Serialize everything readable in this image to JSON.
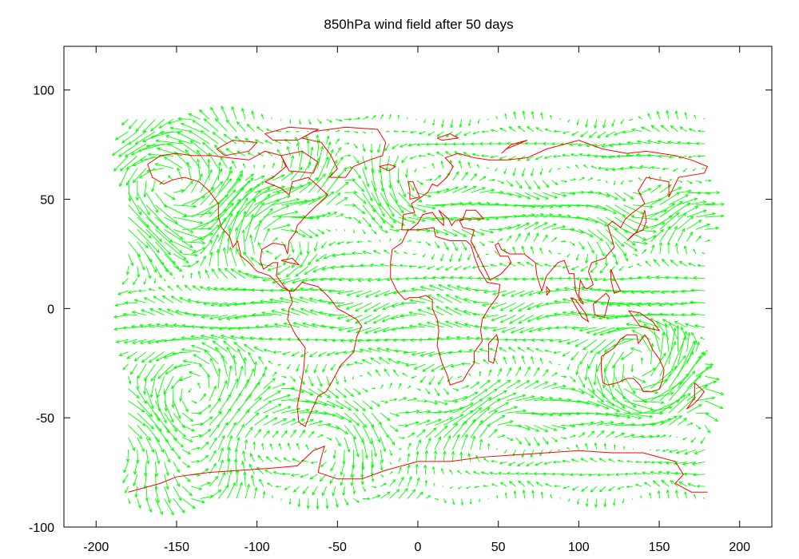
{
  "chart_data": {
    "type": "quiver",
    "title": "850hPa wind field after 50 days",
    "xlabel": "",
    "ylabel": "",
    "xlim": [
      -220,
      220
    ],
    "ylim": [
      -100,
      120
    ],
    "x_ticks": [
      -200,
      -150,
      -100,
      -50,
      0,
      50,
      100,
      150,
      200
    ],
    "y_ticks": [
      -100,
      -50,
      0,
      50,
      100
    ],
    "grid": false,
    "legend": "none",
    "series": [
      {
        "kind": "wind-vectors",
        "color": "#00ff00",
        "x_range": [
          -180,
          180
        ],
        "y_range": [
          -87,
          87
        ],
        "spacing": 5.6
      },
      {
        "kind": "coastline",
        "color": "#ff0000"
      }
    ],
    "vortices": [
      {
        "x": -150,
        "y": 50,
        "strength": 14,
        "r": 22
      },
      {
        "x": -140,
        "y": -55,
        "strength": 13,
        "r": 22
      },
      {
        "x": -45,
        "y": 55,
        "strength": -10,
        "r": 18
      },
      {
        "x": 140,
        "y": -25,
        "strength": 10,
        "r": 18
      },
      {
        "x": 170,
        "y": -40,
        "strength": -9,
        "r": 16
      },
      {
        "x": 135,
        "y": 48,
        "strength": 8,
        "r": 15
      },
      {
        "x": 20,
        "y": -45,
        "strength": 7,
        "r": 16
      },
      {
        "x": -90,
        "y": 30,
        "strength": -6,
        "r": 18
      },
      {
        "x": -20,
        "y": -60,
        "strength": 9,
        "r": 20
      }
    ]
  },
  "coastlines": {
    "north_america": [
      [
        -168,
        66
      ],
      [
        -160,
        70
      ],
      [
        -150,
        71
      ],
      [
        -140,
        70
      ],
      [
        -128,
        70
      ],
      [
        -118,
        69
      ],
      [
        -105,
        68
      ],
      [
        -95,
        72
      ],
      [
        -85,
        70
      ],
      [
        -82,
        65
      ],
      [
        -90,
        60
      ],
      [
        -95,
        58
      ],
      [
        -85,
        55
      ],
      [
        -80,
        52
      ],
      [
        -78,
        58
      ],
      [
        -68,
        60
      ],
      [
        -62,
        56
      ],
      [
        -56,
        52
      ],
      [
        -66,
        45
      ],
      [
        -70,
        42
      ],
      [
        -75,
        38
      ],
      [
        -76,
        35
      ],
      [
        -80,
        31
      ],
      [
        -81,
        25
      ],
      [
        -83,
        29
      ],
      [
        -90,
        30
      ],
      [
        -97,
        27
      ],
      [
        -98,
        22
      ],
      [
        -96,
        18
      ],
      [
        -90,
        21
      ],
      [
        -87,
        21
      ],
      [
        -88,
        15
      ],
      [
        -83,
        10
      ],
      [
        -80,
        8
      ],
      [
        -85,
        10
      ],
      [
        -92,
        15
      ],
      [
        -100,
        17
      ],
      [
        -105,
        21
      ],
      [
        -110,
        24
      ],
      [
        -112,
        31
      ],
      [
        -115,
        28
      ],
      [
        -117,
        33
      ],
      [
        -122,
        37
      ],
      [
        -124,
        42
      ],
      [
        -124,
        48
      ],
      [
        -130,
        54
      ],
      [
        -136,
        58
      ],
      [
        -145,
        60
      ],
      [
        -152,
        59
      ],
      [
        -158,
        57
      ],
      [
        -165,
        60
      ],
      [
        -168,
        66
      ]
    ],
    "south_america": [
      [
        -80,
        8
      ],
      [
        -77,
        8
      ],
      [
        -72,
        12
      ],
      [
        -62,
        10
      ],
      [
        -55,
        5
      ],
      [
        -50,
        0
      ],
      [
        -45,
        -2
      ],
      [
        -38,
        -5
      ],
      [
        -35,
        -8
      ],
      [
        -38,
        -13
      ],
      [
        -40,
        -20
      ],
      [
        -44,
        -23
      ],
      [
        -48,
        -26
      ],
      [
        -53,
        -33
      ],
      [
        -57,
        -38
      ],
      [
        -62,
        -40
      ],
      [
        -65,
        -45
      ],
      [
        -68,
        -50
      ],
      [
        -70,
        -54
      ],
      [
        -74,
        -52
      ],
      [
        -75,
        -45
      ],
      [
        -73,
        -37
      ],
      [
        -71,
        -28
      ],
      [
        -70,
        -18
      ],
      [
        -76,
        -12
      ],
      [
        -81,
        -5
      ],
      [
        -80,
        0
      ],
      [
        -78,
        3
      ],
      [
        -80,
        8
      ]
    ],
    "eurasia": [
      [
        -10,
        36
      ],
      [
        -9,
        43
      ],
      [
        -2,
        44
      ],
      [
        -4,
        48
      ],
      [
        2,
        51
      ],
      [
        6,
        53
      ],
      [
        9,
        57
      ],
      [
        12,
        56
      ],
      [
        18,
        60
      ],
      [
        22,
        65
      ],
      [
        17,
        69
      ],
      [
        25,
        71
      ],
      [
        35,
        69
      ],
      [
        44,
        68
      ],
      [
        55,
        68
      ],
      [
        68,
        69
      ],
      [
        80,
        73
      ],
      [
        100,
        77
      ],
      [
        115,
        73
      ],
      [
        130,
        71
      ],
      [
        142,
        72
      ],
      [
        160,
        70
      ],
      [
        170,
        68
      ],
      [
        180,
        65
      ],
      [
        178,
        62
      ],
      [
        162,
        60
      ],
      [
        156,
        51
      ],
      [
        156,
        58
      ],
      [
        142,
        60
      ],
      [
        137,
        54
      ],
      [
        141,
        48
      ],
      [
        132,
        43
      ],
      [
        129,
        41
      ],
      [
        126,
        37
      ],
      [
        121,
        40
      ],
      [
        118,
        38
      ],
      [
        121,
        31
      ],
      [
        122,
        28
      ],
      [
        116,
        23
      ],
      [
        108,
        21
      ],
      [
        106,
        17
      ],
      [
        109,
        11
      ],
      [
        105,
        9
      ],
      [
        103,
        10
      ],
      [
        101,
        13
      ],
      [
        100,
        6
      ],
      [
        103,
        2
      ],
      [
        101,
        3
      ],
      [
        98,
        8
      ],
      [
        97,
        16
      ],
      [
        94,
        16
      ],
      [
        91,
        22
      ],
      [
        87,
        21
      ],
      [
        80,
        15
      ],
      [
        77,
        8
      ],
      [
        74,
        15
      ],
      [
        73,
        21
      ],
      [
        66,
        25
      ],
      [
        57,
        25
      ],
      [
        52,
        27
      ],
      [
        50,
        30
      ],
      [
        48,
        29
      ],
      [
        51,
        24
      ],
      [
        56,
        24
      ],
      [
        58,
        21
      ],
      [
        52,
        16
      ],
      [
        45,
        13
      ],
      [
        43,
        16
      ],
      [
        39,
        22
      ],
      [
        35,
        28
      ],
      [
        33,
        31
      ],
      [
        35,
        36
      ],
      [
        28,
        37
      ],
      [
        26,
        40
      ],
      [
        29,
        41
      ],
      [
        41,
        41
      ],
      [
        36,
        45
      ],
      [
        30,
        45
      ],
      [
        28,
        41
      ],
      [
        23,
        40
      ],
      [
        21,
        38
      ],
      [
        19,
        41
      ],
      [
        13,
        45
      ],
      [
        16,
        41
      ],
      [
        16,
        38
      ],
      [
        12,
        41
      ],
      [
        9,
        44
      ],
      [
        3,
        43
      ],
      [
        0,
        39
      ],
      [
        -5,
        36
      ],
      [
        -10,
        36
      ]
    ],
    "africa": [
      [
        -17,
        21
      ],
      [
        -16,
        27
      ],
      [
        -10,
        30
      ],
      [
        -6,
        36
      ],
      [
        0,
        36
      ],
      [
        10,
        37
      ],
      [
        11,
        33
      ],
      [
        20,
        31
      ],
      [
        30,
        31
      ],
      [
        33,
        29
      ],
      [
        35,
        24
      ],
      [
        38,
        18
      ],
      [
        43,
        12
      ],
      [
        51,
        11
      ],
      [
        50,
        6
      ],
      [
        44,
        0
      ],
      [
        40,
        -5
      ],
      [
        39,
        -10
      ],
      [
        40,
        -15
      ],
      [
        35,
        -20
      ],
      [
        35,
        -25
      ],
      [
        32,
        -28
      ],
      [
        28,
        -33
      ],
      [
        20,
        -35
      ],
      [
        18,
        -30
      ],
      [
        15,
        -25
      ],
      [
        12,
        -17
      ],
      [
        13,
        -10
      ],
      [
        12,
        -5
      ],
      [
        9,
        0
      ],
      [
        9,
        4
      ],
      [
        5,
        6
      ],
      [
        0,
        5
      ],
      [
        -5,
        5
      ],
      [
        -8,
        4
      ],
      [
        -13,
        8
      ],
      [
        -17,
        14
      ],
      [
        -17,
        21
      ]
    ],
    "greenland": [
      [
        -55,
        60
      ],
      [
        -50,
        64
      ],
      [
        -54,
        70
      ],
      [
        -60,
        76
      ],
      [
        -72,
        78
      ],
      [
        -65,
        81
      ],
      [
        -45,
        83
      ],
      [
        -25,
        82
      ],
      [
        -20,
        76
      ],
      [
        -22,
        70
      ],
      [
        -30,
        68
      ],
      [
        -40,
        65
      ],
      [
        -45,
        60
      ],
      [
        -55,
        60
      ]
    ],
    "australia": [
      [
        114,
        -22
      ],
      [
        122,
        -18
      ],
      [
        126,
        -14
      ],
      [
        130,
        -12
      ],
      [
        136,
        -12
      ],
      [
        137,
        -16
      ],
      [
        141,
        -12
      ],
      [
        143,
        -14
      ],
      [
        146,
        -19
      ],
      [
        150,
        -23
      ],
      [
        153,
        -28
      ],
      [
        152,
        -33
      ],
      [
        150,
        -37
      ],
      [
        145,
        -38
      ],
      [
        140,
        -38
      ],
      [
        138,
        -35
      ],
      [
        134,
        -32
      ],
      [
        130,
        -32
      ],
      [
        124,
        -34
      ],
      [
        118,
        -35
      ],
      [
        115,
        -34
      ],
      [
        114,
        -28
      ],
      [
        114,
        -22
      ]
    ],
    "antarctica": [
      [
        -180,
        -84
      ],
      [
        -170,
        -82
      ],
      [
        -160,
        -80
      ],
      [
        -150,
        -77
      ],
      [
        -130,
        -75
      ],
      [
        -110,
        -74
      ],
      [
        -90,
        -73
      ],
      [
        -75,
        -72
      ],
      [
        -65,
        -65
      ],
      [
        -58,
        -63
      ],
      [
        -60,
        -68
      ],
      [
        -62,
        -75
      ],
      [
        -50,
        -78
      ],
      [
        -35,
        -78
      ],
      [
        -20,
        -74
      ],
      [
        0,
        -70
      ],
      [
        20,
        -70
      ],
      [
        40,
        -68
      ],
      [
        60,
        -67
      ],
      [
        80,
        -66
      ],
      [
        100,
        -65
      ],
      [
        120,
        -66
      ],
      [
        140,
        -66
      ],
      [
        160,
        -70
      ],
      [
        165,
        -76
      ],
      [
        160,
        -80
      ],
      [
        170,
        -84
      ],
      [
        180,
        -84
      ]
    ],
    "madagascar": [
      [
        44,
        -16
      ],
      [
        49,
        -12
      ],
      [
        50,
        -15
      ],
      [
        47,
        -25
      ],
      [
        44,
        -24
      ],
      [
        44,
        -16
      ]
    ],
    "borneo": [
      [
        109,
        2
      ],
      [
        117,
        7
      ],
      [
        119,
        5
      ],
      [
        117,
        -1
      ],
      [
        116,
        -4
      ],
      [
        110,
        -3
      ],
      [
        109,
        2
      ]
    ],
    "sumatra": [
      [
        95,
        5
      ],
      [
        98,
        4
      ],
      [
        104,
        -2
      ],
      [
        106,
        -6
      ],
      [
        102,
        -4
      ],
      [
        95,
        5
      ]
    ],
    "new_guinea": [
      [
        131,
        -1
      ],
      [
        138,
        -2
      ],
      [
        146,
        -6
      ],
      [
        150,
        -10
      ],
      [
        143,
        -9
      ],
      [
        138,
        -8
      ],
      [
        131,
        -1
      ]
    ],
    "japan": [
      [
        130,
        31
      ],
      [
        134,
        34
      ],
      [
        140,
        36
      ],
      [
        142,
        40
      ],
      [
        141,
        45
      ],
      [
        139,
        40
      ],
      [
        136,
        35
      ],
      [
        130,
        31
      ]
    ],
    "new_zealand": [
      [
        172,
        -34
      ],
      [
        178,
        -38
      ],
      [
        175,
        -41
      ],
      [
        171,
        -44
      ],
      [
        167,
        -46
      ],
      [
        172,
        -41
      ],
      [
        172,
        -34
      ]
    ],
    "british_isles": [
      [
        -5,
        50
      ],
      [
        1,
        51
      ],
      [
        0,
        53
      ],
      [
        -2,
        56
      ],
      [
        -3,
        58
      ],
      [
        -6,
        58
      ],
      [
        -5,
        54
      ],
      [
        -5,
        50
      ]
    ],
    "iceland": [
      [
        -24,
        65
      ],
      [
        -18,
        66
      ],
      [
        -14,
        65
      ],
      [
        -18,
        63
      ],
      [
        -24,
        65
      ]
    ],
    "svalbard": [
      [
        12,
        78
      ],
      [
        20,
        80
      ],
      [
        25,
        78
      ],
      [
        15,
        77
      ],
      [
        12,
        78
      ]
    ],
    "novaya_zemlya": [
      [
        52,
        71
      ],
      [
        58,
        75
      ],
      [
        68,
        77
      ],
      [
        55,
        73
      ],
      [
        52,
        71
      ]
    ],
    "baffin": [
      [
        -80,
        63
      ],
      [
        -65,
        62
      ],
      [
        -62,
        67
      ],
      [
        -72,
        72
      ],
      [
        -85,
        70
      ],
      [
        -80,
        63
      ]
    ],
    "ellesmere": [
      [
        -90,
        77
      ],
      [
        -75,
        77
      ],
      [
        -62,
        82
      ],
      [
        -80,
        83
      ],
      [
        -95,
        80
      ],
      [
        -90,
        77
      ]
    ],
    "arctic_islands": [
      [
        -120,
        70
      ],
      [
        -105,
        72
      ],
      [
        -100,
        76
      ],
      [
        -115,
        77
      ],
      [
        -125,
        73
      ],
      [
        -120,
        70
      ]
    ],
    "cuba": [
      [
        -85,
        22
      ],
      [
        -78,
        23
      ],
      [
        -74,
        20
      ],
      [
        -80,
        21
      ],
      [
        -85,
        22
      ]
    ],
    "sri_lanka": [
      [
        80,
        6
      ],
      [
        82,
        8
      ],
      [
        80,
        10
      ],
      [
        80,
        6
      ]
    ],
    "philippines": [
      [
        120,
        18
      ],
      [
        122,
        14
      ],
      [
        126,
        8
      ],
      [
        122,
        7
      ],
      [
        120,
        13
      ],
      [
        120,
        18
      ]
    ]
  }
}
